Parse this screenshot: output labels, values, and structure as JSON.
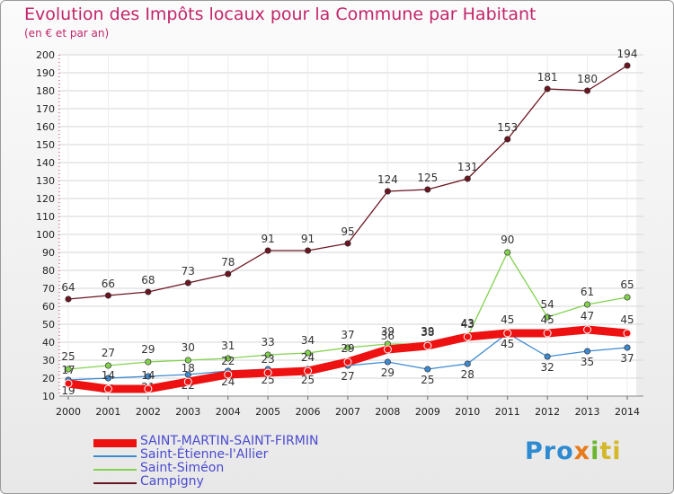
{
  "chart_data": {
    "type": "line",
    "title": "Evolution des Impôts locaux pour la Commune par Habitant",
    "subtitle": "(en € et par an)",
    "xlabel": "",
    "ylabel": "",
    "ylim": [
      10,
      200
    ],
    "ytick_step": 10,
    "categories": [
      "2000",
      "2001",
      "2002",
      "2003",
      "2004",
      "2005",
      "2006",
      "2007",
      "2008",
      "2009",
      "2010",
      "2011",
      "2012",
      "2013",
      "2014"
    ],
    "series": [
      {
        "name": "Campigny",
        "color": "#6b1520",
        "values": [
          64,
          66,
          68,
          73,
          78,
          91,
          91,
          95,
          124,
          125,
          131,
          153,
          181,
          180,
          194
        ]
      },
      {
        "name": "Saint-Siméon",
        "color": "#82d24e",
        "values": [
          25,
          27,
          29,
          30,
          31,
          33,
          34,
          37,
          39,
          39,
          43,
          90,
          54,
          61,
          65
        ]
      },
      {
        "name": "Saint-Étienne-l'Allier",
        "color": "#3d8ad1",
        "values": [
          19,
          20,
          21,
          22,
          24,
          25,
          25,
          27,
          29,
          25,
          28,
          45,
          32,
          35,
          37
        ]
      },
      {
        "name": "SAINT-MARTIN-SAINT-FIRMIN",
        "color": "#ee1111",
        "values": [
          17,
          14,
          14,
          18,
          22,
          23,
          24,
          29,
          36,
          38,
          43,
          45,
          45,
          47,
          45
        ]
      }
    ],
    "legend": [
      "SAINT-MARTIN-SAINT-FIRMIN",
      "Saint-Étienne-l'Allier",
      "Saint-Siméon",
      "Campigny"
    ],
    "legend_position": "bottom-left"
  },
  "brand": {
    "p1": "Pro",
    "p2": "x",
    "p3": "i",
    "p4": "ti"
  }
}
